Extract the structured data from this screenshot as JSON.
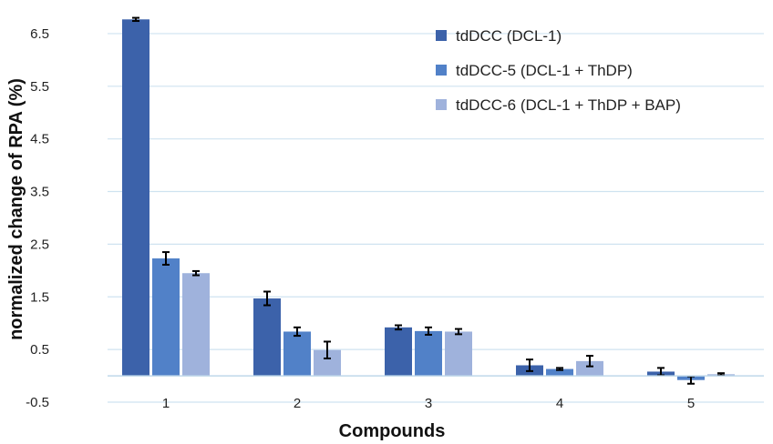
{
  "chart_data": {
    "type": "bar",
    "title": "",
    "xlabel": "Compounds",
    "ylabel": "normalized change of RPA (%)",
    "categories": [
      "1",
      "2",
      "3",
      "4",
      "5"
    ],
    "ylim": [
      -0.5,
      7.0
    ],
    "yticks": [
      -0.5,
      0.5,
      1.5,
      2.5,
      3.5,
      4.5,
      5.5,
      6.5
    ],
    "ytick_labels": [
      "-0.5",
      "0.5",
      "1.5",
      "2.5",
      "3.5",
      "4.5",
      "5.5",
      "6.5"
    ],
    "grid": true,
    "legend_position": "top-right",
    "series": [
      {
        "name": "tdDCC (DCL-1)",
        "color": "#3c62aa",
        "values": [
          6.77,
          1.47,
          0.92,
          0.2,
          0.08
        ],
        "errors": [
          0.03,
          0.13,
          0.04,
          0.11,
          0.07
        ]
      },
      {
        "name": "tdDCC-5 (DCL-1 + ThDP)",
        "color": "#5181c8",
        "values": [
          2.23,
          0.84,
          0.85,
          0.13,
          -0.08
        ],
        "errors": [
          0.12,
          0.08,
          0.07,
          0.02,
          0.07
        ]
      },
      {
        "name": "tdDCC-6 (DCL-1 + ThDP + BAP)",
        "color": "#9fb2dc",
        "values": [
          1.95,
          0.49,
          0.84,
          0.28,
          0.03
        ],
        "errors": [
          0.04,
          0.16,
          0.05,
          0.1,
          0.02
        ]
      }
    ]
  }
}
